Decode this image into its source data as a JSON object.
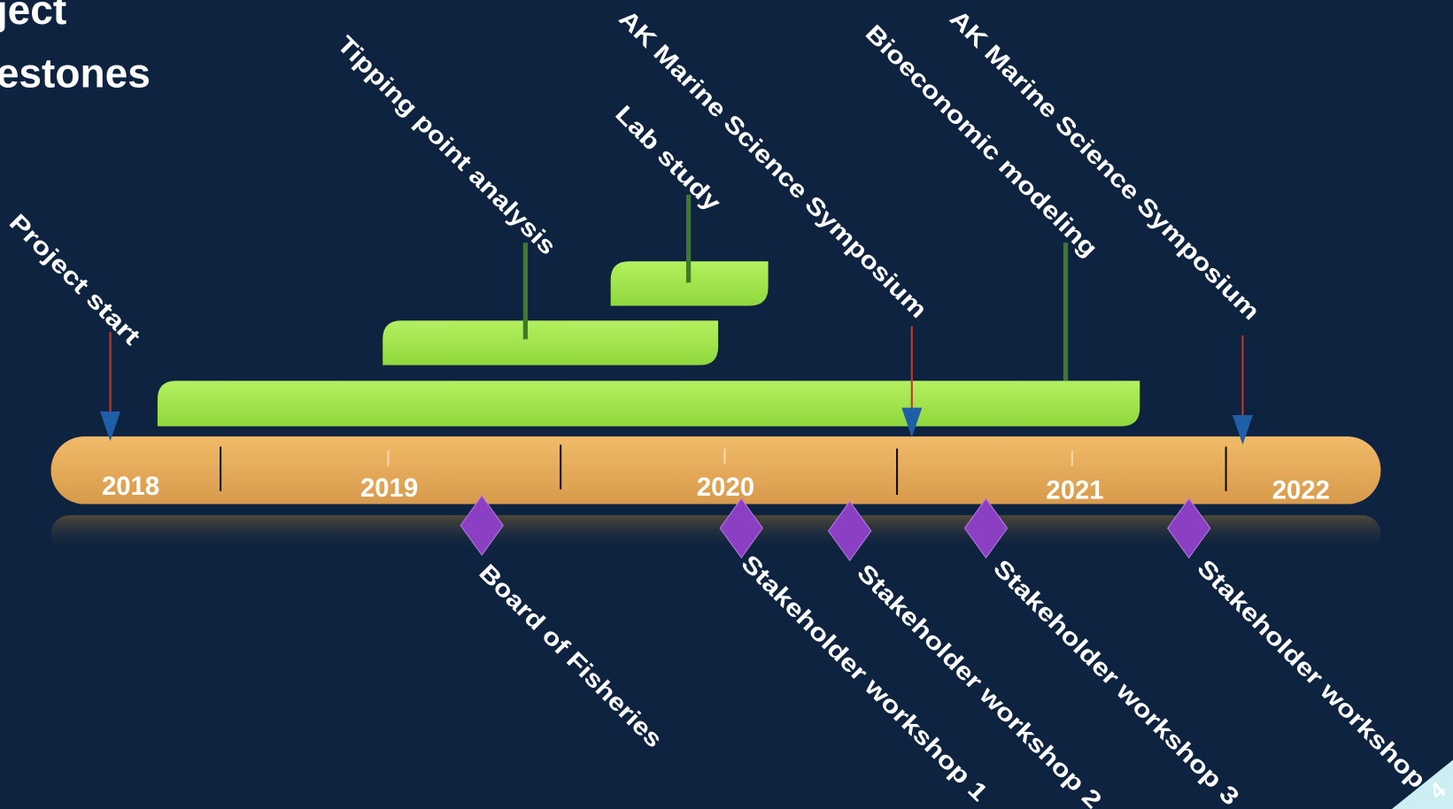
{
  "title": {
    "lines": [
      "ject",
      "estones"
    ]
  },
  "years": [
    "2018",
    "2019",
    "2020",
    "2021",
    "2022"
  ],
  "activities": [
    "Project start",
    "Tipping point analysis",
    "Lab study",
    "AK Marine Science Symposium",
    "Bioeconomic modeling",
    "AK Marine Science Symposium"
  ],
  "events": [
    "Board of Fisheries",
    "Stakeholder workshop 1",
    "Stakeholder workshop 2",
    "Stakeholder workshop 3",
    "Stakeholder workshop 4"
  ],
  "page_number": "4"
}
